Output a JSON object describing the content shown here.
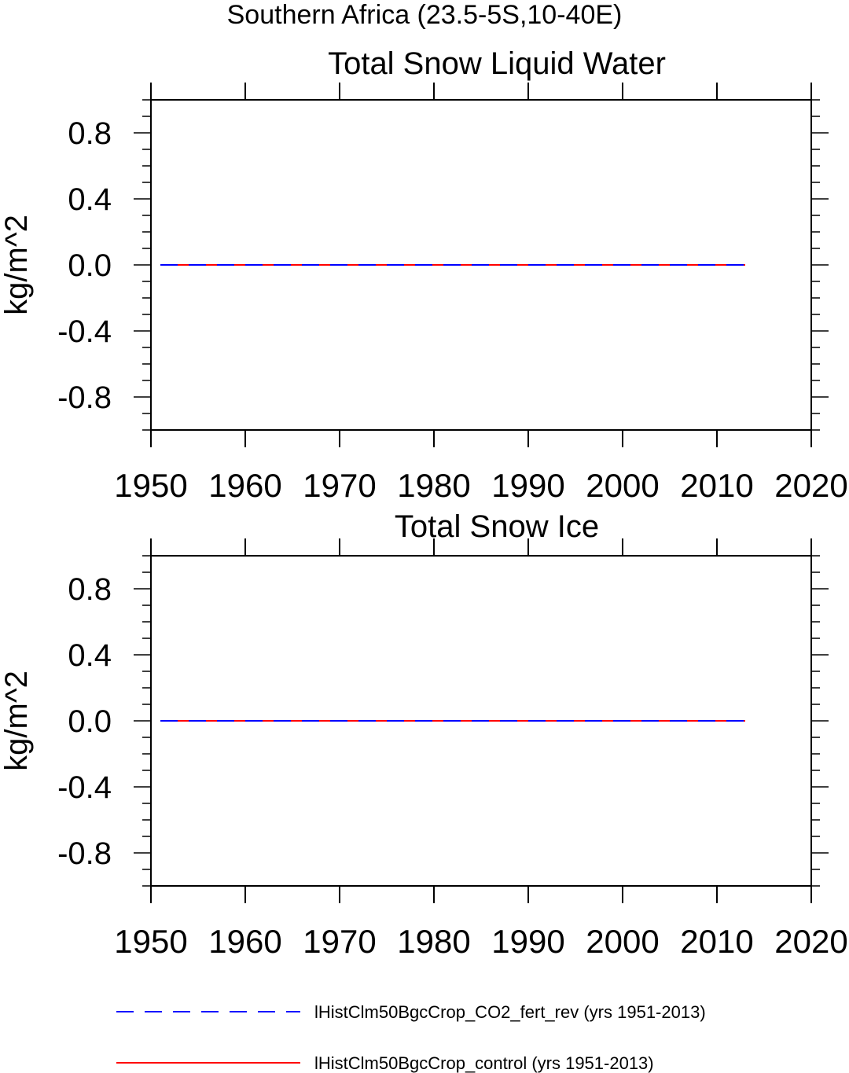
{
  "figure_title": "Southern Africa (23.5-5S,10-40E)",
  "legend": [
    {
      "label": "lHistClm50BgcCrop_CO2_fert_rev (yrs 1951-2013)",
      "color": "#0000ff",
      "style": "dashed"
    },
    {
      "label": "lHistClm50BgcCrop_control (yrs 1951-2013)",
      "color": "#ff0000",
      "style": "solid"
    }
  ],
  "chart_data": [
    {
      "type": "line",
      "title": "Total Snow Liquid Water",
      "xlabel": "",
      "ylabel": "kg/m^2",
      "xlim": [
        1950,
        2020
      ],
      "ylim": [
        -1.0,
        1.0
      ],
      "xticks": [
        1950,
        1960,
        1970,
        1980,
        1990,
        2000,
        2010,
        2020
      ],
      "xtick_labels": [
        "1950",
        "1960",
        "1970",
        "1980",
        "1990",
        "2000",
        "2010",
        "2020"
      ],
      "yticks": [
        0.8,
        0.4,
        0.0,
        -0.4,
        -0.8
      ],
      "ytick_labels": [
        "0.8",
        "0.4",
        "0.0",
        "-0.4",
        "-0.8"
      ],
      "grid": false,
      "series": [
        {
          "name": "lHistClm50BgcCrop_control (yrs 1951-2013)",
          "color": "#ff0000",
          "style": "solid",
          "x": [
            1951,
            2013
          ],
          "values": [
            0.0,
            0.0
          ]
        },
        {
          "name": "lHistClm50BgcCrop_CO2_fert_rev (yrs 1951-2013)",
          "color": "#0000ff",
          "style": "dashed",
          "x": [
            1951,
            2013
          ],
          "values": [
            0.0,
            0.0
          ]
        }
      ]
    },
    {
      "type": "line",
      "title": "Total Snow Ice",
      "xlabel": "",
      "ylabel": "kg/m^2",
      "xlim": [
        1950,
        2020
      ],
      "ylim": [
        -1.0,
        1.0
      ],
      "xticks": [
        1950,
        1960,
        1970,
        1980,
        1990,
        2000,
        2010,
        2020
      ],
      "xtick_labels": [
        "1950",
        "1960",
        "1970",
        "1980",
        "1990",
        "2000",
        "2010",
        "2020"
      ],
      "yticks": [
        0.8,
        0.4,
        0.0,
        -0.4,
        -0.8
      ],
      "ytick_labels": [
        "0.8",
        "0.4",
        "0.0",
        "-0.4",
        "-0.8"
      ],
      "grid": false,
      "series": [
        {
          "name": "lHistClm50BgcCrop_control (yrs 1951-2013)",
          "color": "#ff0000",
          "style": "solid",
          "x": [
            1951,
            2013
          ],
          "values": [
            0.0,
            0.0
          ]
        },
        {
          "name": "lHistClm50BgcCrop_CO2_fert_rev (yrs 1951-2013)",
          "color": "#0000ff",
          "style": "dashed",
          "x": [
            1951,
            2013
          ],
          "values": [
            0.0,
            0.0
          ]
        }
      ]
    }
  ]
}
